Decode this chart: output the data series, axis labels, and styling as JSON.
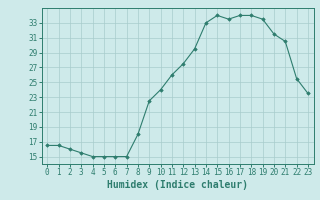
{
  "x": [
    0,
    1,
    2,
    3,
    4,
    5,
    6,
    7,
    8,
    9,
    10,
    11,
    12,
    13,
    14,
    15,
    16,
    17,
    18,
    19,
    20,
    21,
    22,
    23
  ],
  "y": [
    16.5,
    16.5,
    16.0,
    15.5,
    15.0,
    15.0,
    15.0,
    15.0,
    18.0,
    22.5,
    24.0,
    26.0,
    27.5,
    29.5,
    33.0,
    34.0,
    33.5,
    34.0,
    34.0,
    33.5,
    31.5,
    30.5,
    25.5,
    23.5
  ],
  "xlabel": "Humidex (Indice chaleur)",
  "ylim": [
    14,
    35
  ],
  "xlim": [
    -0.5,
    23.5
  ],
  "yticks": [
    15,
    17,
    19,
    21,
    23,
    25,
    27,
    29,
    31,
    33
  ],
  "xticks": [
    0,
    1,
    2,
    3,
    4,
    5,
    6,
    7,
    8,
    9,
    10,
    11,
    12,
    13,
    14,
    15,
    16,
    17,
    18,
    19,
    20,
    21,
    22,
    23
  ],
  "xtick_labels": [
    "0",
    "1",
    "2",
    "3",
    "4",
    "5",
    "6",
    "7",
    "8",
    "9",
    "10",
    "11",
    "12",
    "13",
    "14",
    "15",
    "16",
    "17",
    "18",
    "19",
    "20",
    "21",
    "22",
    "23"
  ],
  "line_color": "#2e7d6e",
  "marker": "D",
  "marker_size": 1.8,
  "bg_color": "#ceeaea",
  "grid_color": "#a8cccc",
  "tick_label_fontsize": 5.5,
  "xlabel_fontsize": 7.0
}
